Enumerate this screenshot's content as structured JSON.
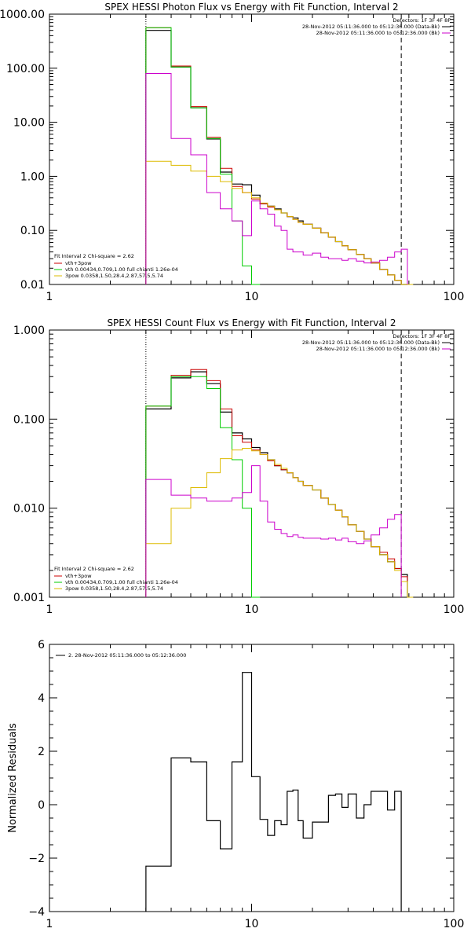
{
  "chart_data": [
    {
      "type": "line",
      "title": "SPEX HESSI Photon Flux vs Energy with Fit Function, Interval 2",
      "xlabel": "",
      "ylabel": "",
      "xscale": "log",
      "yscale": "log",
      "xlim": [
        1,
        100
      ],
      "ylim": [
        0.01,
        1000
      ],
      "xticks": [
        1,
        10,
        100
      ],
      "xtick_labels": [
        "1",
        "10",
        "100"
      ],
      "yticks": [
        0.01,
        0.1,
        1,
        10,
        100,
        1000
      ],
      "ytick_labels": [
        "0.01",
        "0.10",
        "1.00",
        "10.00",
        "100.00",
        "1000.00"
      ],
      "vlines": [
        {
          "x": 3.0,
          "style": "dotted"
        },
        {
          "x": 55,
          "style": "dashed"
        }
      ],
      "legend_top": {
        "title": "Detectors: 1F 3F 4F 8F",
        "entries": [
          {
            "label": "28-Nov-2012 05:11:36.000 to 05:12:36.000 (Data-Bk)",
            "color": "#000000"
          },
          {
            "label": "28-Nov-2012 05:11:36.000 to 05:12:36.000 (Bk)",
            "color": "#cc00cc"
          }
        ]
      },
      "legend_bottom": {
        "title": "Fit Interval 2   Chi-square = 2.62",
        "entries": [
          {
            "label": "vth+3pow",
            "color": "#cc0000"
          },
          {
            "label": "vth 0.00434,0.709,1.00  full chianti 1.26e-04",
            "color": "#00cc00"
          },
          {
            "label": "3pow 0.0358,1.50,28.4,2.87,57.5,5.74",
            "color": "#ddbb00"
          }
        ]
      },
      "bin_edges": [
        3.0,
        4.0,
        5.0,
        6.0,
        7.0,
        8.0,
        9.0,
        10.0,
        11.0,
        12.0,
        13.0,
        14.0,
        15.0,
        16.0,
        17.0,
        18.0,
        20.0,
        22.0,
        24.0,
        26.0,
        28.0,
        30.0,
        33.0,
        36.0,
        39.0,
        43.0,
        47.0,
        51.0,
        55.0,
        59.0,
        63.0
      ],
      "series": [
        {
          "color": "#000000",
          "width": 1.2,
          "values": [
            500,
            105,
            18.5,
            4.9,
            1.2,
            0.72,
            0.7,
            0.45,
            0.31,
            0.28,
            0.25,
            0.21,
            0.18,
            0.17,
            0.15,
            0.13,
            0.11,
            0.09,
            0.075,
            0.062,
            0.052,
            0.044,
            0.036,
            0.03,
            0.025,
            0.019,
            0.015,
            0.012,
            0.009,
            null
          ]
        },
        {
          "color": "#cc0000",
          "width": 1.0,
          "values": [
            560,
            110,
            19.5,
            5.3,
            1.4,
            0.65,
            0.5,
            0.38,
            0.31,
            0.27,
            0.24,
            0.21,
            0.18,
            0.16,
            0.14,
            0.13,
            0.11,
            0.09,
            0.075,
            0.062,
            0.052,
            0.044,
            0.036,
            0.03,
            0.025,
            0.019,
            0.015,
            0.012,
            0.01,
            null
          ]
        },
        {
          "color": "#00cc00",
          "width": 1.0,
          "values": [
            560,
            105,
            18.5,
            5.0,
            1.1,
            0.15,
            0.022,
            0.003,
            null,
            null,
            null,
            null,
            null,
            null,
            null,
            null,
            null,
            null,
            null,
            null,
            null,
            null,
            null,
            null,
            null,
            null,
            null,
            null,
            null,
            null
          ]
        },
        {
          "color": "#ddbb00",
          "width": 1.0,
          "values": [
            1.9,
            1.6,
            1.25,
            1.0,
            0.8,
            0.6,
            0.5,
            0.4,
            0.32,
            0.28,
            0.24,
            0.21,
            0.18,
            0.16,
            0.14,
            0.13,
            0.11,
            0.09,
            0.075,
            0.062,
            0.052,
            0.044,
            0.036,
            0.03,
            0.025,
            0.019,
            0.015,
            0.012,
            0.01,
            0.008
          ]
        },
        {
          "color": "#cc00cc",
          "width": 1.0,
          "values": [
            80,
            5,
            2.5,
            0.5,
            0.25,
            0.15,
            0.08,
            0.35,
            0.25,
            0.2,
            0.12,
            0.1,
            0.045,
            0.04,
            0.04,
            0.035,
            0.038,
            0.032,
            0.03,
            0.03,
            0.028,
            0.03,
            0.027,
            0.025,
            0.026,
            0.028,
            0.032,
            0.04,
            0.045,
            null
          ]
        }
      ]
    },
    {
      "type": "line",
      "title": "SPEX HESSI Count Flux vs Energy with Fit Function, Interval 2",
      "xlabel": "",
      "ylabel": "",
      "xscale": "log",
      "yscale": "log",
      "xlim": [
        1,
        100
      ],
      "ylim": [
        0.001,
        1
      ],
      "xticks": [
        1,
        10,
        100
      ],
      "xtick_labels": [
        "1",
        "10",
        "100"
      ],
      "yticks": [
        0.001,
        0.01,
        0.1,
        1
      ],
      "ytick_labels": [
        "0.001",
        "0.010",
        "0.100",
        "1.000"
      ],
      "vlines": [
        {
          "x": 3.0,
          "style": "dotted"
        },
        {
          "x": 55,
          "style": "dashed"
        }
      ],
      "legend_top": {
        "title": "Detectors: 1F 3F 4F 8F",
        "entries": [
          {
            "label": "28-Nov-2012 05:11:36.000 to 05:12:36.000 (Data-Bk)",
            "color": "#000000"
          },
          {
            "label": "28-Nov-2012 05:11:36.000 to 05:12:36.000 (Bk)",
            "color": "#cc00cc"
          }
        ]
      },
      "legend_bottom": {
        "title": "Fit Interval 2   Chi-square = 2.62",
        "entries": [
          {
            "label": "vth+3pow",
            "color": "#cc0000"
          },
          {
            "label": "vth 0.00434,0.709,1.00  full chianti 1.26e-04",
            "color": "#00cc00"
          },
          {
            "label": "3pow 0.0358,1.50,28.4,2.87,57.5,5.74",
            "color": "#ddbb00"
          }
        ]
      },
      "bin_edges": [
        3.0,
        4.0,
        5.0,
        6.0,
        7.0,
        8.0,
        9.0,
        10.0,
        11.0,
        12.0,
        13.0,
        14.0,
        15.0,
        16.0,
        17.0,
        18.0,
        20.0,
        22.0,
        24.0,
        26.0,
        28.0,
        30.0,
        33.0,
        36.0,
        39.0,
        43.0,
        47.0,
        51.0,
        55.0,
        59.0,
        63.0
      ],
      "series": [
        {
          "color": "#000000",
          "width": 1.2,
          "values": [
            0.13,
            0.29,
            0.34,
            0.25,
            0.12,
            0.07,
            0.06,
            0.048,
            0.042,
            0.035,
            0.03,
            0.027,
            0.025,
            0.022,
            0.02,
            0.018,
            0.016,
            0.013,
            0.011,
            0.0095,
            0.008,
            0.0065,
            0.0055,
            0.0045,
            0.0037,
            0.003,
            0.0025,
            0.0021,
            0.0018,
            null
          ]
        },
        {
          "color": "#cc0000",
          "width": 1.0,
          "values": [
            0.14,
            0.31,
            0.36,
            0.27,
            0.13,
            0.065,
            0.055,
            0.045,
            0.04,
            0.034,
            0.03,
            0.027,
            0.025,
            0.022,
            0.02,
            0.018,
            0.016,
            0.013,
            0.011,
            0.0095,
            0.008,
            0.0065,
            0.0055,
            0.0045,
            0.0037,
            0.0032,
            0.0027,
            0.0021,
            0.0017,
            null
          ]
        },
        {
          "color": "#00cc00",
          "width": 1.0,
          "values": [
            0.14,
            0.3,
            0.3,
            0.22,
            0.08,
            0.035,
            0.01,
            0.001,
            null,
            null,
            null,
            null,
            null,
            null,
            null,
            null,
            null,
            null,
            null,
            null,
            null,
            null,
            null,
            null,
            null,
            null,
            null,
            null,
            null,
            null
          ]
        },
        {
          "color": "#ddbb00",
          "width": 1.0,
          "values": [
            0.004,
            0.01,
            0.017,
            0.025,
            0.036,
            0.045,
            0.047,
            0.044,
            0.04,
            0.035,
            0.031,
            0.028,
            0.025,
            0.022,
            0.02,
            0.018,
            0.016,
            0.013,
            0.011,
            0.0095,
            0.008,
            0.0065,
            0.0055,
            0.0045,
            0.0037,
            0.003,
            0.0025,
            0.002,
            0.0015,
            0.001
          ]
        },
        {
          "color": "#cc00cc",
          "width": 1.0,
          "values": [
            0.021,
            0.014,
            0.013,
            0.012,
            0.012,
            0.013,
            0.015,
            0.03,
            0.012,
            0.007,
            0.0058,
            0.0052,
            0.0048,
            0.005,
            0.0047,
            0.0046,
            0.0046,
            0.0045,
            0.0046,
            0.0044,
            0.0046,
            0.0042,
            0.004,
            0.0043,
            0.005,
            0.006,
            0.0075,
            0.0085,
            null,
            null
          ]
        }
      ]
    },
    {
      "type": "line",
      "title": "",
      "xlabel": "",
      "ylabel": "Normalized Residuals",
      "xscale": "log",
      "yscale": "linear",
      "xlim": [
        1,
        100
      ],
      "ylim": [
        -4,
        6
      ],
      "xticks": [
        1,
        10,
        100
      ],
      "xtick_labels": [
        "1",
        "10",
        "100"
      ],
      "yticks": [
        -4,
        -2,
        0,
        2,
        4,
        6
      ],
      "ytick_labels": [
        "−4",
        "−2",
        "0",
        "2",
        "4",
        "6"
      ],
      "legend": "2. 28-Nov-2012 05:11:36.000 to 05:12:36.000",
      "bin_edges": [
        3.0,
        4.0,
        5.0,
        6.0,
        7.0,
        8.0,
        9.0,
        10.0,
        11.0,
        12.0,
        13.0,
        14.0,
        15.0,
        16.0,
        17.0,
        18.0,
        20.0,
        22.0,
        24.0,
        26.0,
        28.0,
        30.0,
        33.0,
        36.0,
        39.0,
        43.0,
        47.0,
        51.0,
        55.0
      ],
      "series": [
        {
          "color": "#000000",
          "width": 1.2,
          "values": [
            -2.3,
            1.75,
            1.6,
            -0.6,
            -1.65,
            1.6,
            4.95,
            1.05,
            -0.55,
            -1.15,
            -0.6,
            -0.75,
            0.5,
            0.55,
            -0.6,
            -1.25,
            -0.65,
            -0.65,
            0.35,
            0.4,
            -0.1,
            0.4,
            -0.5,
            0.0,
            0.5,
            0.5,
            -0.2,
            0.5
          ]
        }
      ]
    }
  ]
}
